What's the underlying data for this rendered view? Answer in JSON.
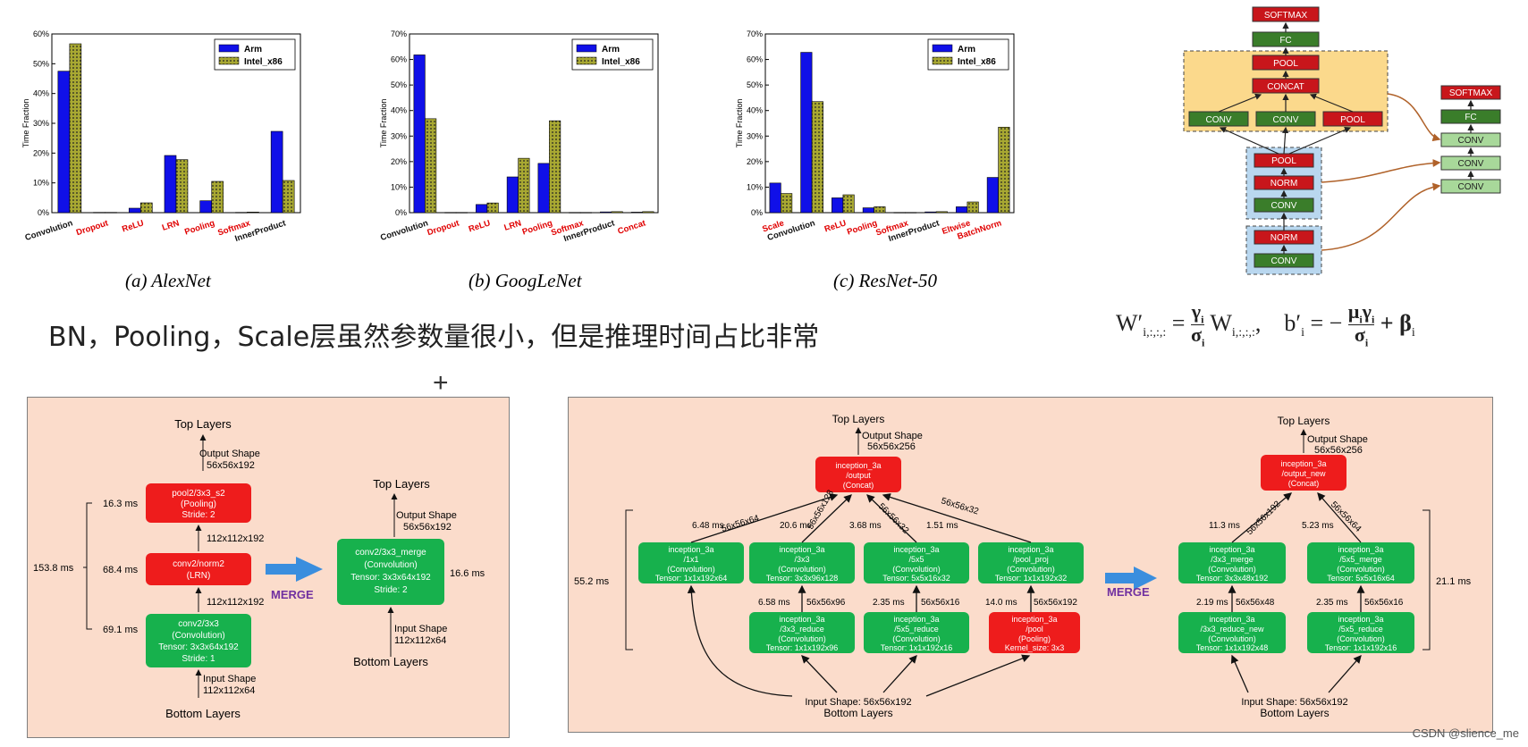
{
  "chart_data": [
    {
      "type": "bar",
      "caption": "(a) AlexNet",
      "ylabel": "Time Fraction",
      "ylim": [
        0,
        60
      ],
      "yticks": [
        "0%",
        "10%",
        "20%",
        "30%",
        "40%",
        "50%",
        "60%"
      ],
      "categories": [
        "Convolution",
        "Dropout",
        "ReLU",
        "LRN",
        "Pooling",
        "Softmax",
        "InnerProduct"
      ],
      "highlighted": [
        false,
        true,
        true,
        true,
        true,
        true,
        false
      ],
      "legend_position": "top-right",
      "series": [
        {
          "name": "Arm",
          "color": "#1010e8",
          "values": [
            47.5,
            0.1,
            1.5,
            19.2,
            4.0,
            0.1,
            27.3
          ]
        },
        {
          "name": "Intel_x86",
          "color": "#a8a832",
          "values": [
            56.7,
            0.1,
            3.3,
            17.8,
            10.5,
            0.2,
            10.8
          ]
        }
      ]
    },
    {
      "type": "bar",
      "caption": "(b) GoogLeNet",
      "ylabel": "Time Fraction",
      "ylim": [
        0,
        70
      ],
      "yticks": [
        "0%",
        "10%",
        "20%",
        "30%",
        "40%",
        "50%",
        "60%",
        "70%"
      ],
      "categories": [
        "Convolution",
        "Dropout",
        "ReLU",
        "LRN",
        "Pooling",
        "Softmax",
        "InnerProduct",
        "Concat"
      ],
      "highlighted": [
        false,
        true,
        true,
        true,
        true,
        true,
        false,
        true
      ],
      "legend_position": "top-right",
      "series": [
        {
          "name": "Arm",
          "color": "#1010e8",
          "values": [
            61.8,
            0.1,
            3.2,
            14.0,
            19.3,
            0.1,
            0.3,
            0.2
          ]
        },
        {
          "name": "Intel_x86",
          "color": "#a8a832",
          "values": [
            36.8,
            0.1,
            3.8,
            21.3,
            36.0,
            0.1,
            0.4,
            0.4
          ]
        }
      ]
    },
    {
      "type": "bar",
      "caption": "(c) ResNet-50",
      "ylabel": "Time Fraction",
      "ylim": [
        0,
        70
      ],
      "yticks": [
        "0%",
        "10%",
        "20%",
        "30%",
        "40%",
        "50%",
        "60%",
        "70%"
      ],
      "categories": [
        "Scale",
        "Convolution",
        "ReLU",
        "Pooling",
        "Softmax",
        "InnerProduct",
        "Eltwise",
        "BatchNorm"
      ],
      "highlighted": [
        true,
        false,
        true,
        true,
        true,
        false,
        true,
        true
      ],
      "legend_position": "top-right",
      "series": [
        {
          "name": "Arm",
          "color": "#1010e8",
          "values": [
            11.6,
            62.8,
            5.8,
            1.9,
            0.1,
            0.3,
            2.3,
            13.8
          ]
        },
        {
          "name": "Intel_x86",
          "color": "#a8a832",
          "values": [
            7.5,
            43.5,
            7.0,
            2.3,
            0.1,
            0.4,
            4.2,
            33.5
          ]
        }
      ]
    }
  ],
  "headline": "BN，Pooling，Scale层虽然参数量很小，但是推理时间占比非常",
  "plus_mark": "+",
  "colors": {
    "red_node": "#ee1c1c",
    "green_node": "#17b14d",
    "panel_bg": "#fbdccb",
    "arrow_blue": "#3a8ede",
    "merge_text": "#7030a0"
  },
  "inception_fig": {
    "left_stack": [
      "SOFTMAX",
      "FC",
      "POOL",
      "CONCAT"
    ],
    "branch_labels": [
      "CONV",
      "CONV",
      "POOL"
    ],
    "lower_group_1": [
      "POOL",
      "NORM",
      "CONV"
    ],
    "lower_group_2": [
      "NORM",
      "CONV"
    ],
    "right_stack": [
      "SOFTMAX",
      "FC",
      "CONV",
      "CONV",
      "CONV"
    ]
  },
  "formula": {
    "w_lhs": "W′",
    "w_sub": "i,:,:,:",
    "eq": "=",
    "gamma": "γ",
    "sigma": "σ",
    "i": "i",
    "w_rhs": "W",
    "comma": ",",
    "b_lhs": "b′",
    "b_eq": "= −",
    "mu": "μ",
    "plus": "+ β"
  },
  "merge1": {
    "top_layers": "Top Layers",
    "output_shape": "Output Shape",
    "output_dims": "56x56x192",
    "pool": [
      "pool2/3x3_s2",
      "(Pooling)",
      "Stride: 2"
    ],
    "norm": [
      "conv2/norm2",
      "(LRN)"
    ],
    "conv": [
      "conv2/3x3",
      "(Convolution)",
      "Tensor: 3x3x64x192",
      "Stride: 1"
    ],
    "t_pool": "16.3 ms",
    "t_norm": "68.4 ms",
    "t_conv": "69.1 ms",
    "t_total": "153.8 ms",
    "dim_a": "112x112x192",
    "dim_b": "112x112x192",
    "input_shape": "Input Shape",
    "input_dims": "112x112x64",
    "bottom_layers": "Bottom Layers",
    "merge_label": "MERGE",
    "r_top_layers": "Top Layers",
    "r_output_shape": "Output Shape",
    "r_output_dims": "56x56x192",
    "merged": [
      "conv2/3x3_merge",
      "(Convolution)",
      "Tensor: 3x3x64x192",
      "Stride: 2"
    ],
    "t_merged": "16.6 ms",
    "r_input_shape": "Input Shape",
    "r_input_dims": "112x112x64",
    "r_bottom_layers": "Bottom Layers"
  },
  "merge2": {
    "top_layers": "Top Layers",
    "output_shape": "Output Shape",
    "output_dims": "56x56x256",
    "concat": [
      "inception_3a",
      "/output",
      "(Concat)"
    ],
    "b1": [
      "inception_3a",
      "/1x1",
      "(Convolution)",
      "Tensor: 1x1x192x64"
    ],
    "b2": [
      "inception_3a",
      "/3x3",
      "(Convolution)",
      "Tensor: 3x3x96x128"
    ],
    "b3": [
      "inception_3a",
      "/5x5",
      "(Convolution)",
      "Tensor: 5x5x16x32"
    ],
    "b4": [
      "inception_3a",
      "/pool_proj",
      "(Convolution)",
      "Tensor: 1x1x192x32"
    ],
    "r2": [
      "inception_3a",
      "/3x3_reduce",
      "(Convolution)",
      "Tensor: 1x1x192x96"
    ],
    "r3": [
      "inception_3a",
      "/5x5_reduce",
      "(Convolution)",
      "Tensor: 1x1x192x16"
    ],
    "p4": [
      "inception_3a",
      "/pool",
      "(Pooling)",
      "Kernel_size: 3x3"
    ],
    "t1": "6.48 ms",
    "t2": "20.6 ms",
    "t3": "3.68 ms",
    "t4": "1.51 ms",
    "d1": "56x56x64",
    "d2": "56x56x128",
    "d3": "56x56x32",
    "d4": "56x56x32",
    "tr2": "6.58 ms",
    "dr2": "56x56x96",
    "tr3": "2.35 ms",
    "dr3": "56x56x16",
    "tp4": "14.0 ms",
    "dp4": "56x56x192",
    "t_total": "55.2 ms",
    "input_shape": "Input Shape: 56x56x192",
    "bottom_layers": "Bottom Layers",
    "merge_label": "MERGE",
    "r_top_layers": "Top Layers",
    "r_output_shape": "Output Shape",
    "r_output_dims": "56x56x256",
    "r_concat": [
      "inception_3a",
      "/output_new",
      "(Concat)"
    ],
    "m1": [
      "inception_3a",
      "/3x3_merge",
      "(Convolution)",
      "Tensor: 3x3x48x192"
    ],
    "m2": [
      "inception_3a",
      "/5x5_merge",
      "(Convolution)",
      "Tensor: 5x5x16x64"
    ],
    "n1": [
      "inception_3a",
      "/3x3_reduce_new",
      "(Convolution)",
      "Tensor: 1x1x192x48"
    ],
    "n2": [
      "inception_3a",
      "/5x5_reduce",
      "(Convolution)",
      "Tensor: 1x1x192x16"
    ],
    "tm1": "11.3 ms",
    "dm1": "56x56x192",
    "tm2": "5.23 ms",
    "dm2": "56x56x64",
    "tn1": "2.19 ms",
    "dn1": "56x56x48",
    "tn2": "2.35 ms",
    "dn2": "56x56x16",
    "r_total": "21.1 ms",
    "r_input_shape": "Input Shape: 56x56x192",
    "r_bottom_layers": "Bottom Layers"
  },
  "watermark": "CSDN @slience_me"
}
